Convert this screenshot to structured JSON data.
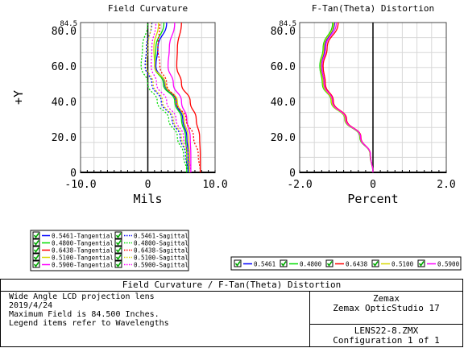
{
  "chart_data": [
    {
      "type": "line",
      "title": "Field Curvature",
      "xlabel": "Mils",
      "ylabel": "+Y",
      "xlim": [
        -10.0,
        10.0
      ],
      "ylim": [
        0,
        84.5
      ],
      "xticks": [
        "-10.0",
        "0",
        "10.0"
      ],
      "yticks": [
        "0",
        "20.0",
        "40.0",
        "60.0",
        "80.0"
      ],
      "ymax_label": "84.5",
      "grid": true,
      "series": [
        {
          "name": "0.5461-Tangential",
          "color": "#0000ff",
          "style": "solid",
          "x": [
            6.0,
            6.0,
            5.8,
            5.2,
            4.2,
            2.5,
            1.2,
            1.5,
            2.8
          ],
          "y": [
            0,
            10,
            20,
            30,
            40,
            50,
            60,
            70,
            84.5
          ]
        },
        {
          "name": "0.4800-Tangential",
          "color": "#00dd00",
          "style": "solid",
          "x": [
            5.8,
            5.8,
            5.6,
            5.0,
            4.0,
            2.3,
            1.0,
            1.2,
            2.4
          ],
          "y": [
            0,
            10,
            20,
            30,
            40,
            50,
            60,
            70,
            84.5
          ]
        },
        {
          "name": "0.6438-Tangential",
          "color": "#ff0000",
          "style": "solid",
          "x": [
            7.8,
            7.8,
            7.7,
            7.2,
            6.3,
            5.0,
            4.3,
            4.4,
            5.0
          ],
          "y": [
            0,
            10,
            20,
            30,
            40,
            50,
            60,
            70,
            84.5
          ]
        },
        {
          "name": "0.5100-Tangential",
          "color": "#d8d800",
          "style": "solid",
          "x": [
            6.2,
            6.2,
            6.0,
            5.4,
            4.4,
            2.6,
            1.0,
            0.9,
            1.6
          ],
          "y": [
            0,
            10,
            20,
            30,
            40,
            50,
            60,
            70,
            84.5
          ]
        },
        {
          "name": "0.5900-Tangential",
          "color": "#ff00ff",
          "style": "solid",
          "x": [
            6.4,
            6.4,
            6.3,
            5.8,
            5.0,
            3.8,
            3.0,
            3.2,
            4.0
          ],
          "y": [
            0,
            10,
            20,
            30,
            40,
            50,
            60,
            70,
            84.5
          ]
        },
        {
          "name": "0.5461-Sagittal",
          "color": "#0000ff",
          "style": "dotted",
          "x": [
            6.0,
            5.6,
            4.8,
            3.6,
            2.0,
            0.6,
            -0.4,
            -0.2,
            0.6
          ],
          "y": [
            0,
            10,
            20,
            30,
            40,
            50,
            60,
            70,
            84.5
          ]
        },
        {
          "name": "0.4800-Sagittal",
          "color": "#00dd00",
          "style": "dotted",
          "x": [
            5.8,
            5.3,
            4.4,
            3.1,
            1.4,
            0.0,
            -1.0,
            -0.8,
            0.0
          ],
          "y": [
            0,
            10,
            20,
            30,
            40,
            50,
            60,
            70,
            84.5
          ]
        },
        {
          "name": "0.6438-Sagittal",
          "color": "#ff0000",
          "style": "dotted",
          "x": [
            7.8,
            7.5,
            6.8,
            5.7,
            4.2,
            2.8,
            1.8,
            1.5,
            1.8
          ],
          "y": [
            0,
            10,
            20,
            30,
            40,
            50,
            60,
            70,
            84.5
          ]
        },
        {
          "name": "0.5100-Sagittal",
          "color": "#d8d800",
          "style": "dotted",
          "x": [
            6.2,
            5.8,
            5.0,
            3.8,
            2.2,
            0.8,
            -0.2,
            0.0,
            0.5
          ],
          "y": [
            0,
            10,
            20,
            30,
            40,
            50,
            60,
            70,
            84.5
          ]
        },
        {
          "name": "0.5900-Sagittal",
          "color": "#ff00ff",
          "style": "dotted",
          "x": [
            6.4,
            6.0,
            5.3,
            4.2,
            2.8,
            1.3,
            0.5,
            0.6,
            1.2
          ],
          "y": [
            0,
            10,
            20,
            30,
            40,
            50,
            60,
            70,
            84.5
          ]
        }
      ]
    },
    {
      "type": "line",
      "title": "F-Tan(Theta) Distortion",
      "xlabel": "Percent",
      "ylabel": "",
      "xlim": [
        -2.0,
        2.0
      ],
      "ylim": [
        0,
        84.5
      ],
      "xticks": [
        "-2.0",
        "0",
        "2.0"
      ],
      "yticks": [
        "0",
        "20.0",
        "40.0",
        "60.0",
        "80.0"
      ],
      "ymax_label": "84.5",
      "grid": true,
      "series": [
        {
          "name": "0.5461",
          "color": "#0000ff",
          "x": [
            0,
            -0.08,
            -0.35,
            -0.75,
            -1.12,
            -1.35,
            -1.42,
            -1.32,
            -1.05
          ],
          "y": [
            0,
            10,
            20,
            30,
            40,
            50,
            60,
            70,
            84.5
          ]
        },
        {
          "name": "0.4800",
          "color": "#00dd00",
          "x": [
            0,
            -0.08,
            -0.36,
            -0.77,
            -1.14,
            -1.38,
            -1.45,
            -1.36,
            -1.1
          ],
          "y": [
            0,
            10,
            20,
            30,
            40,
            50,
            60,
            70,
            84.5
          ]
        },
        {
          "name": "0.6438",
          "color": "#ff0000",
          "x": [
            0,
            -0.07,
            -0.33,
            -0.72,
            -1.08,
            -1.3,
            -1.36,
            -1.25,
            -0.95
          ],
          "y": [
            0,
            10,
            20,
            30,
            40,
            50,
            60,
            70,
            84.5
          ]
        },
        {
          "name": "0.5100",
          "color": "#d8d800",
          "x": [
            0,
            -0.08,
            -0.35,
            -0.76,
            -1.13,
            -1.36,
            -1.43,
            -1.34,
            -1.07
          ],
          "y": [
            0,
            10,
            20,
            30,
            40,
            50,
            60,
            70,
            84.5
          ]
        },
        {
          "name": "0.5900",
          "color": "#ff00ff",
          "x": [
            0,
            -0.07,
            -0.34,
            -0.74,
            -1.1,
            -1.33,
            -1.39,
            -1.29,
            -1.0
          ],
          "y": [
            0,
            10,
            20,
            30,
            40,
            50,
            60,
            70,
            84.5
          ]
        }
      ]
    }
  ],
  "legend_left": [
    {
      "label": "0.5461-Tangential",
      "color": "#0000ff",
      "style": "solid"
    },
    {
      "label": "0.5461-Sagittal",
      "color": "#0000ff",
      "style": "dotted"
    },
    {
      "label": "0.4800-Tangential",
      "color": "#00dd00",
      "style": "solid"
    },
    {
      "label": "0.4800-Sagittal",
      "color": "#00dd00",
      "style": "dotted"
    },
    {
      "label": "0.6438-Tangential",
      "color": "#ff0000",
      "style": "solid"
    },
    {
      "label": "0.6438-Sagittal",
      "color": "#ff0000",
      "style": "dotted"
    },
    {
      "label": "0.5100-Tangential",
      "color": "#d8d800",
      "style": "solid"
    },
    {
      "label": "0.5100-Sagittal",
      "color": "#d8d800",
      "style": "dotted"
    },
    {
      "label": "0.5900-Tangential",
      "color": "#ff00ff",
      "style": "solid"
    },
    {
      "label": "0.5900-Sagittal",
      "color": "#ff00ff",
      "style": "dotted"
    }
  ],
  "legend_right": [
    {
      "label": "0.5461",
      "color": "#0000ff"
    },
    {
      "label": "0.4800",
      "color": "#00dd00"
    },
    {
      "label": "0.6438",
      "color": "#ff0000"
    },
    {
      "label": "0.5100",
      "color": "#d8d800"
    },
    {
      "label": "0.5900",
      "color": "#ff00ff"
    }
  ],
  "checkbox_color": "#00aa00",
  "info": {
    "title": "Field Curvature / F-Tan(Theta) Distortion",
    "lines": [
      "Wide Angle LCD projection lens",
      "2019/4/24",
      "Maximum Field is 84.500 Inches.",
      "Legend items refer to Wavelengths"
    ],
    "company": "Zemax",
    "software": "Zemax OpticStudio 17",
    "filename": "LENS22-8.ZMX",
    "configuration": "Configuration 1 of 1"
  }
}
